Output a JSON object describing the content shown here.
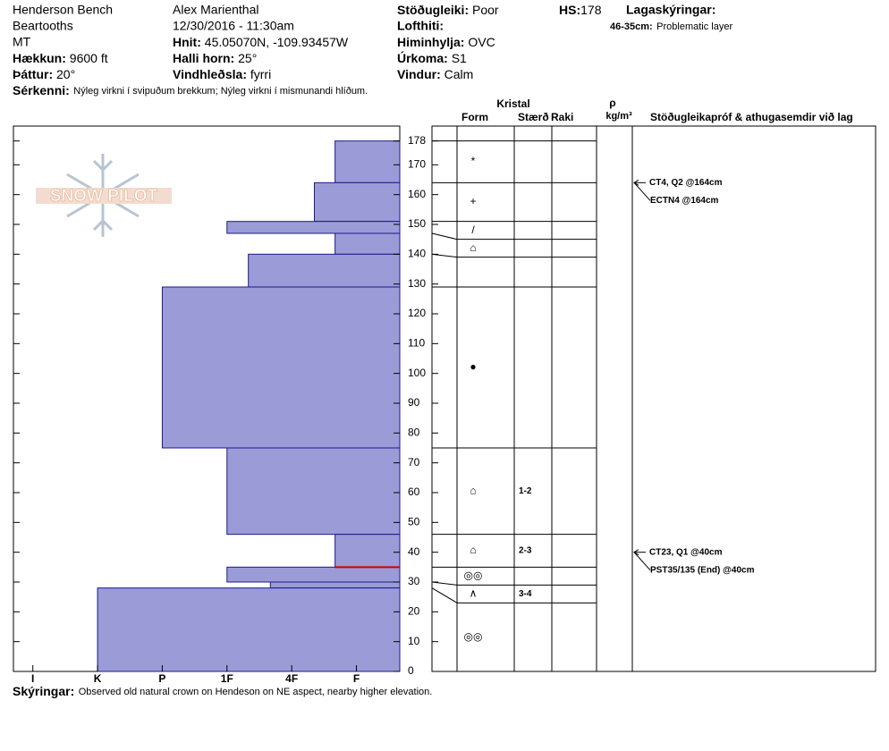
{
  "header": {
    "location": [
      "Henderson Bench",
      "Beartooths",
      "MT"
    ],
    "elevation": {
      "label": "Hækkun:",
      "value": "9600 ft"
    },
    "aspect": {
      "label": "Þáttur:",
      "value": "20°"
    },
    "observer": "Alex Marienthal",
    "datetime": "12/30/2016 - 11:30am",
    "coords": {
      "label": "Hnit:",
      "value": "45.05070N, -109.93457W"
    },
    "slope": {
      "label": "Halli horn:",
      "value": "25°"
    },
    "wind_loading": {
      "label": "Vindhleðsla:",
      "value": "fyrri"
    },
    "stability": {
      "label": "Stöðugleiki:",
      "value": "Poor"
    },
    "air_temp": {
      "label": "Lofthiti:"
    },
    "sky": {
      "label": "Himinhylja:",
      "value": "OVC"
    },
    "precip": {
      "label": "Úrkoma:",
      "value": "S1"
    },
    "wind": {
      "label": "Vindur:",
      "value": "Calm"
    },
    "hs": {
      "label": "HS:",
      "value": "178"
    },
    "legend_title": "Lagaskýringar:",
    "legend_range": "46-35cm:",
    "legend_text": "Problematic layer",
    "features": {
      "label": "Sérkenni:",
      "value": "Nýleg virkni í svipuðum brekkum; Nýleg virkni í mismunandi hlíðum."
    },
    "comments": {
      "label": "Skýringar:",
      "value": "Observed old natural crown on Hendeson on NE aspect, nearby higher elevation."
    }
  },
  "logo": "SNOW PILOT",
  "columns": {
    "crystal": "Kristal",
    "form": "Form",
    "size": "Stærð",
    "moisture": "Raki",
    "rho": "ρ",
    "density": "kg/m³",
    "tests": "Stöðugleikapróf & athugasemdir við lag"
  },
  "chart_data": {
    "type": "bar",
    "ylim": [
      0,
      183
    ],
    "yticks": [
      0,
      10,
      20,
      30,
      40,
      50,
      60,
      70,
      80,
      90,
      100,
      110,
      120,
      130,
      140,
      150,
      160,
      170,
      178
    ],
    "xlim": [
      6.3,
      0.33
    ],
    "xticks": [
      {
        "value": 6,
        "label": "I"
      },
      {
        "value": 5,
        "label": "K"
      },
      {
        "value": 4,
        "label": "P"
      },
      {
        "value": 3,
        "label": "1F"
      },
      {
        "value": 2,
        "label": "4F"
      },
      {
        "value": 1,
        "label": "F"
      }
    ],
    "color": "#9b9bd7",
    "layers": {
      "top": [
        178,
        164,
        151,
        147,
        140,
        129,
        75,
        46,
        35,
        30,
        28
      ],
      "bottom": [
        164,
        151,
        147,
        140,
        129,
        75,
        46,
        35,
        30,
        28,
        0
      ],
      "hardness": [
        1.33,
        1.65,
        3,
        1.33,
        2.67,
        4,
        3,
        1.33,
        3,
        2.33,
        5
      ],
      "form": [
        "*",
        "+",
        "/",
        "⌂",
        null,
        "●",
        "⌂",
        "⌂",
        "◎◎",
        "∧",
        "◎◎"
      ],
      "size": [
        null,
        null,
        null,
        null,
        null,
        null,
        "1-2",
        "2-3",
        null,
        "3-4",
        null
      ]
    },
    "problem_layer": {
      "top": 46,
      "bottom": 35,
      "color": "#cc0000"
    },
    "tests": [
      {
        "height": 164,
        "lines": [
          "CT4, Q2 @164cm",
          "ECTN4 @164cm"
        ]
      },
      {
        "height": 40,
        "lines": [
          "CT23, Q1 @40cm",
          "PST35/135 (End) @40cm"
        ]
      }
    ]
  }
}
